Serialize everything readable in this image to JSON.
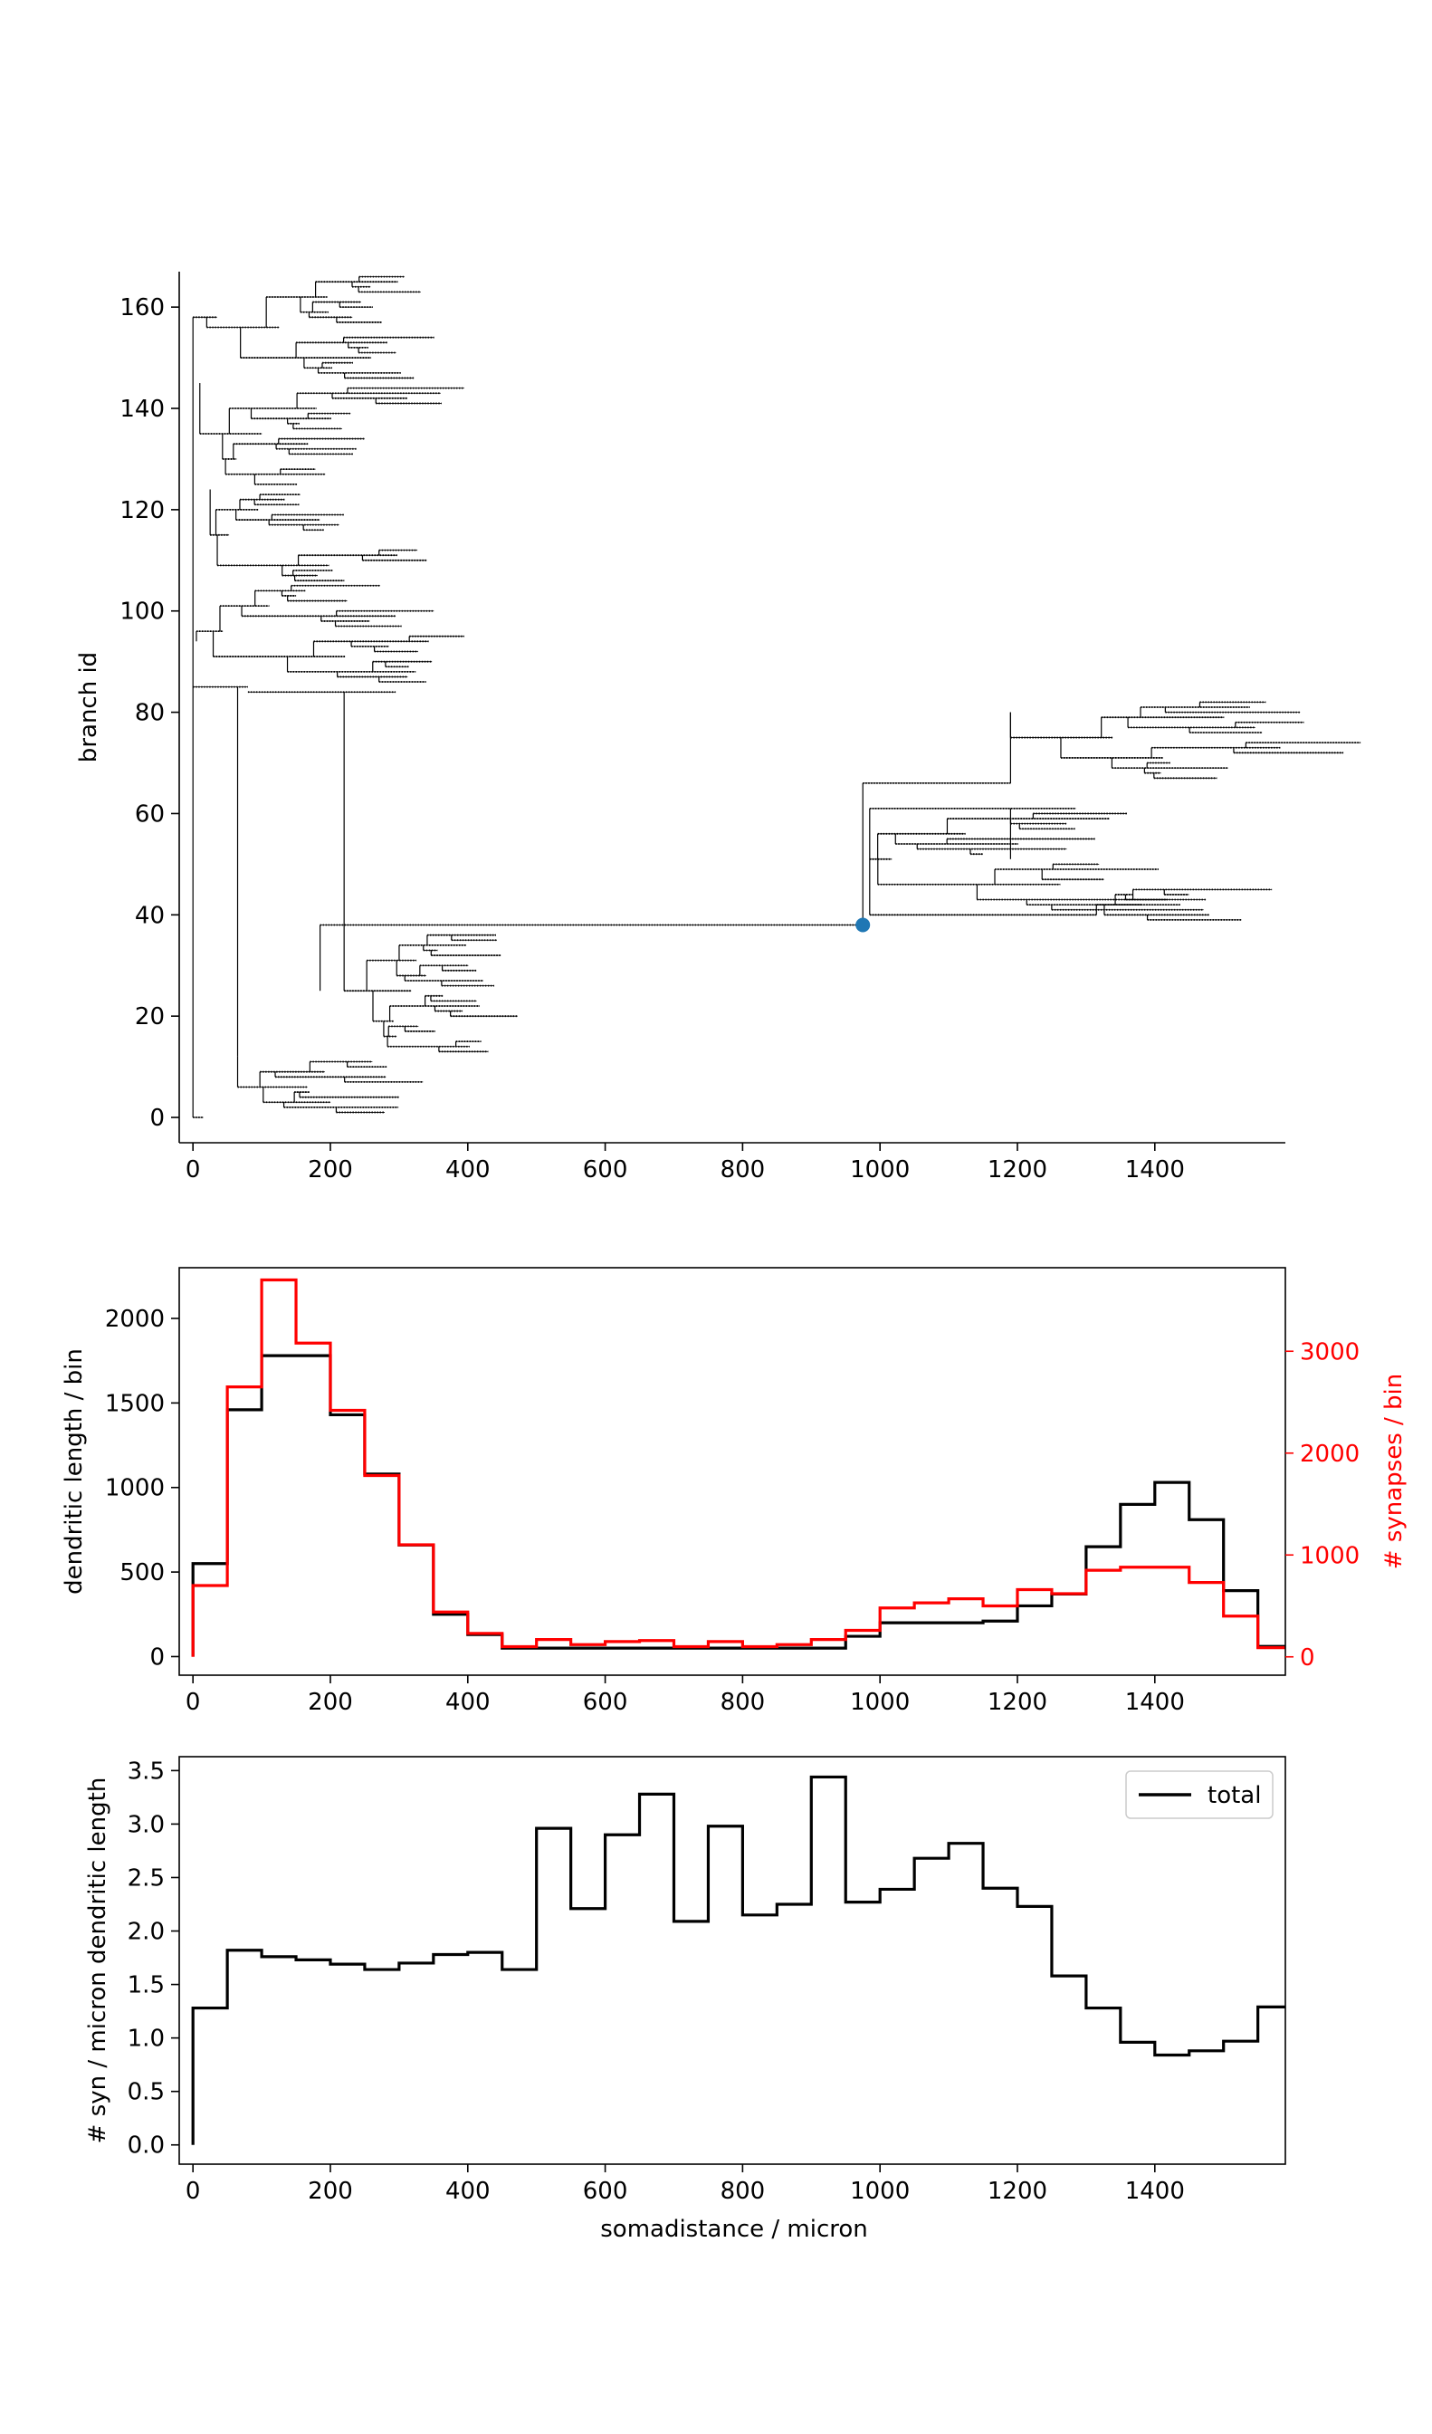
{
  "chart_data": [
    {
      "type": "dendrogram",
      "ylabel": "branch id",
      "xlabel": "",
      "xlim": [
        -20,
        1590
      ],
      "ylim": [
        -5,
        167
      ],
      "xticks": [
        0,
        200,
        400,
        600,
        800,
        1000,
        1200,
        1400
      ],
      "yticks": [
        0,
        20,
        40,
        60,
        80,
        100,
        120,
        140,
        160
      ],
      "marker": {
        "x": 975,
        "y": 38,
        "color": "#1f77b4"
      },
      "line_color": "#000000"
    },
    {
      "type": "step",
      "xlabel": "",
      "ylabel": "dendritic length / bin",
      "y2label": "# synapses / bin",
      "xlim": [
        -20,
        1590
      ],
      "ylim": [
        -110,
        2300
      ],
      "y2lim": [
        -180,
        3820
      ],
      "xticks": [
        0,
        200,
        400,
        600,
        800,
        1000,
        1200,
        1400
      ],
      "yticks": [
        0,
        500,
        1000,
        1500,
        2000
      ],
      "y2ticks": [
        0,
        1000,
        2000,
        3000
      ],
      "bin_edges": [
        0,
        50,
        100,
        150,
        200,
        250,
        300,
        350,
        400,
        450,
        500,
        550,
        600,
        650,
        700,
        750,
        800,
        850,
        900,
        950,
        1000,
        1050,
        1100,
        1150,
        1200,
        1250,
        1300,
        1350,
        1400,
        1450,
        1500,
        1550,
        1590
      ],
      "series": [
        {
          "axis": "left",
          "color": "#000000",
          "values": [
            550,
            1460,
            1780,
            1780,
            1430,
            1080,
            660,
            250,
            130,
            50,
            50,
            50,
            50,
            50,
            50,
            50,
            50,
            50,
            50,
            120,
            200,
            200,
            200,
            210,
            300,
            370,
            650,
            900,
            1030,
            810,
            390,
            60
          ]
        },
        {
          "axis": "right",
          "color": "#ff0000",
          "values": [
            700,
            2650,
            3700,
            3080,
            2420,
            1780,
            1100,
            440,
            230,
            100,
            170,
            120,
            150,
            160,
            100,
            150,
            100,
            120,
            170,
            260,
            480,
            530,
            570,
            500,
            660,
            620,
            850,
            880,
            880,
            730,
            400,
            90
          ]
        }
      ]
    },
    {
      "type": "step",
      "xlabel": "somadistance / micron",
      "ylabel": "# syn / micron dendritic length",
      "xlim": [
        -20,
        1590
      ],
      "ylim": [
        -0.18,
        3.63
      ],
      "xticks": [
        0,
        200,
        400,
        600,
        800,
        1000,
        1200,
        1400
      ],
      "yticks": [
        0.0,
        0.5,
        1.0,
        1.5,
        2.0,
        2.5,
        3.0,
        3.5
      ],
      "legend": {
        "loc": "upper right",
        "label": "total"
      },
      "bin_edges": [
        0,
        50,
        100,
        150,
        200,
        250,
        300,
        350,
        400,
        450,
        500,
        550,
        600,
        650,
        700,
        750,
        800,
        850,
        900,
        950,
        1000,
        1050,
        1100,
        1150,
        1200,
        1250,
        1300,
        1350,
        1400,
        1450,
        1500,
        1550,
        1590
      ],
      "values": [
        1.28,
        1.82,
        1.76,
        1.73,
        1.69,
        1.64,
        1.7,
        1.78,
        1.8,
        1.64,
        2.96,
        2.21,
        2.9,
        3.28,
        2.09,
        2.98,
        2.15,
        2.25,
        3.44,
        2.27,
        2.39,
        2.68,
        2.82,
        2.4,
        2.23,
        1.58,
        1.28,
        0.96,
        0.84,
        0.88,
        0.97,
        1.29
      ]
    }
  ]
}
